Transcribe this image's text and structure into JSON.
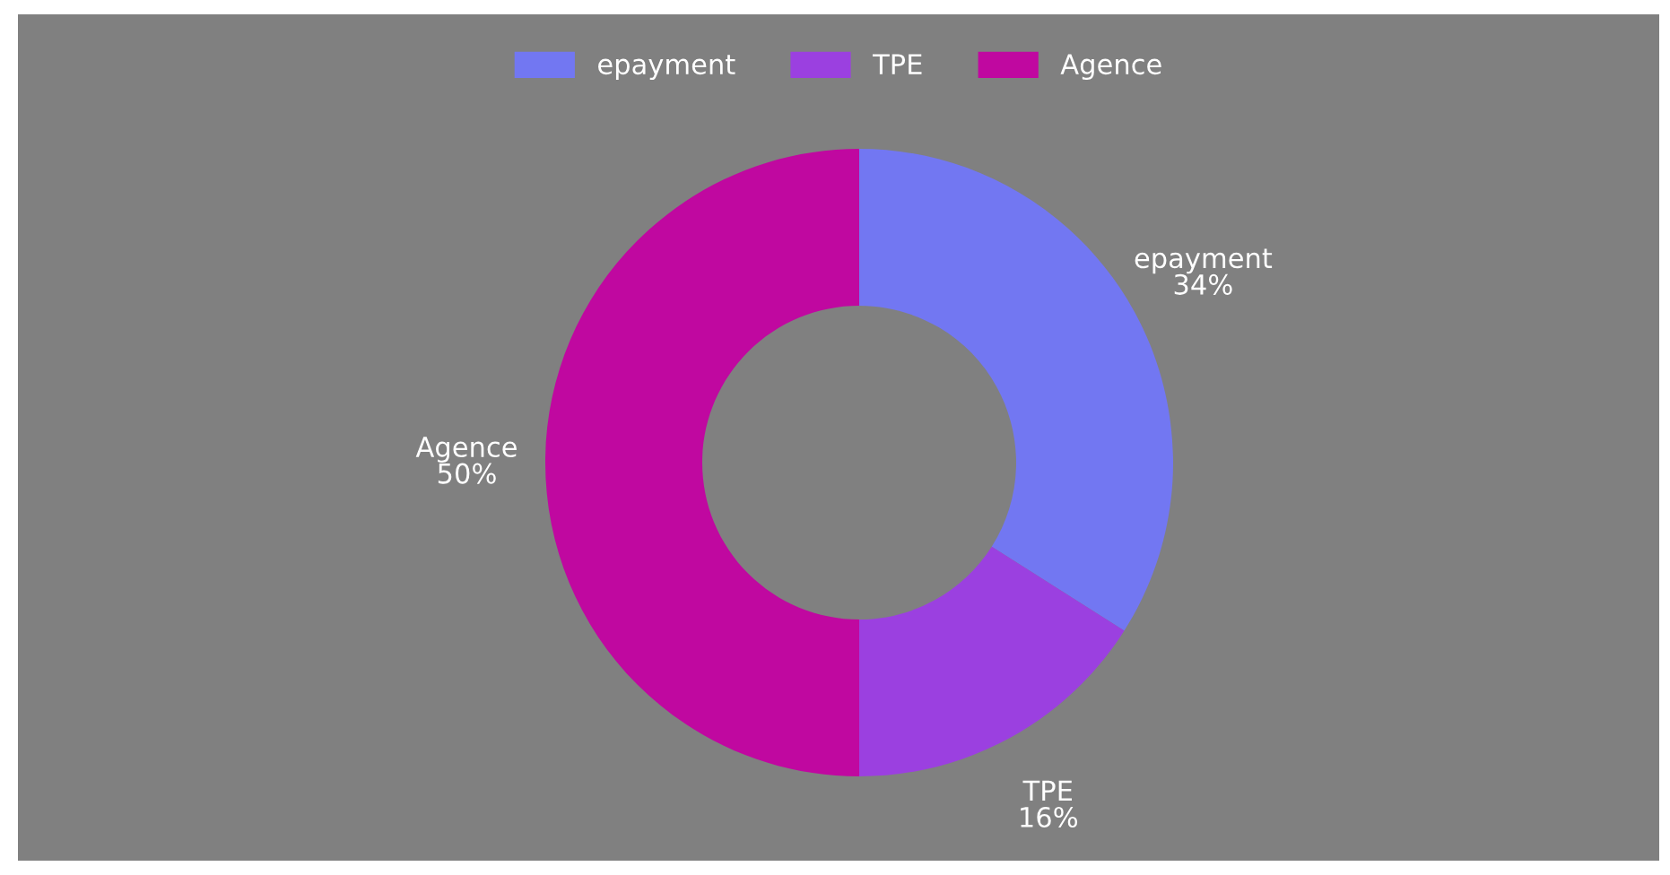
{
  "chart_data": {
    "type": "donut",
    "categories": [
      "epayment",
      "TPE",
      "Agence"
    ],
    "values": [
      34,
      16,
      50
    ],
    "colors": [
      "#7277f2",
      "#9b40e0",
      "#c008a0"
    ],
    "value_labels": [
      "34%",
      "16%",
      "50%"
    ],
    "legend": "top"
  }
}
